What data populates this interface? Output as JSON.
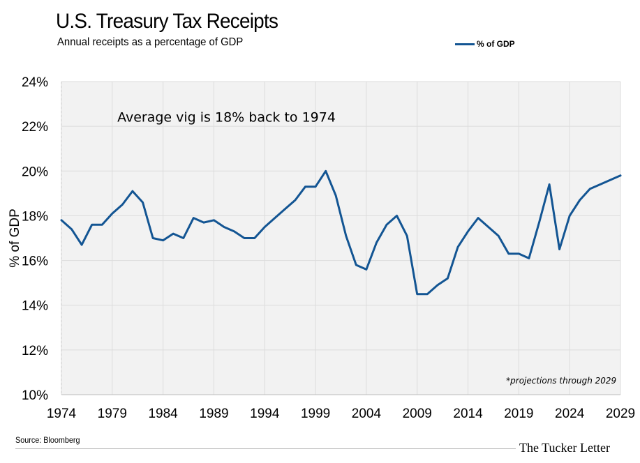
{
  "header": {
    "title": "U.S. Treasury Tax Receipts",
    "subtitle": "Annual receipts as a percentage of GDP"
  },
  "footer": {
    "source": "Source: Bloomberg",
    "brand": "The Tucker Letter"
  },
  "chart_data": {
    "type": "line",
    "title": "U.S. Treasury Tax Receipts",
    "subtitle": "Annual receipts as a percentage of GDP",
    "xlabel": "",
    "ylabel": "% of GDP",
    "xlim": [
      1974,
      2029
    ],
    "ylim": [
      10,
      24
    ],
    "x_ticks": [
      1974,
      1979,
      1984,
      1989,
      1994,
      1999,
      2004,
      2009,
      2014,
      2019,
      2024,
      2029
    ],
    "y_ticks": [
      10,
      12,
      14,
      16,
      18,
      20,
      22,
      24
    ],
    "y_tick_format": "{v}%",
    "grid": true,
    "legend_placement": "top-right",
    "series": [
      {
        "name": "% of GDP",
        "color": "#135593",
        "x": [
          1974,
          1975,
          1976,
          1977,
          1978,
          1979,
          1980,
          1981,
          1982,
          1983,
          1984,
          1985,
          1986,
          1987,
          1988,
          1989,
          1990,
          1991,
          1992,
          1993,
          1994,
          1995,
          1996,
          1997,
          1998,
          1999,
          2000,
          2001,
          2002,
          2003,
          2004,
          2005,
          2006,
          2007,
          2008,
          2009,
          2010,
          2011,
          2012,
          2013,
          2014,
          2015,
          2016,
          2017,
          2018,
          2019,
          2020,
          2021,
          2022,
          2023,
          2024,
          2025,
          2026,
          2027,
          2028,
          2029
        ],
        "values": [
          17.8,
          17.4,
          16.7,
          17.6,
          17.6,
          18.1,
          18.5,
          19.1,
          18.6,
          17.0,
          16.9,
          17.2,
          17.0,
          17.9,
          17.7,
          17.8,
          17.5,
          17.3,
          17.0,
          17.0,
          17.5,
          17.9,
          18.3,
          18.7,
          19.3,
          19.3,
          20.0,
          18.9,
          17.1,
          15.8,
          15.6,
          16.8,
          17.6,
          18.0,
          17.1,
          14.5,
          14.5,
          14.9,
          15.2,
          16.6,
          17.3,
          17.9,
          17.5,
          17.1,
          16.3,
          16.3,
          16.1,
          17.7,
          19.4,
          16.5,
          18.0,
          18.7,
          19.2,
          19.4,
          19.6,
          19.8
        ]
      }
    ],
    "annotations": [
      {
        "text": "Average vig is 18% back to 1974",
        "x": 1979.5,
        "y": 22.2
      },
      {
        "text": "*projections through 2029",
        "x": 2028.6,
        "y": 10.5
      }
    ]
  }
}
